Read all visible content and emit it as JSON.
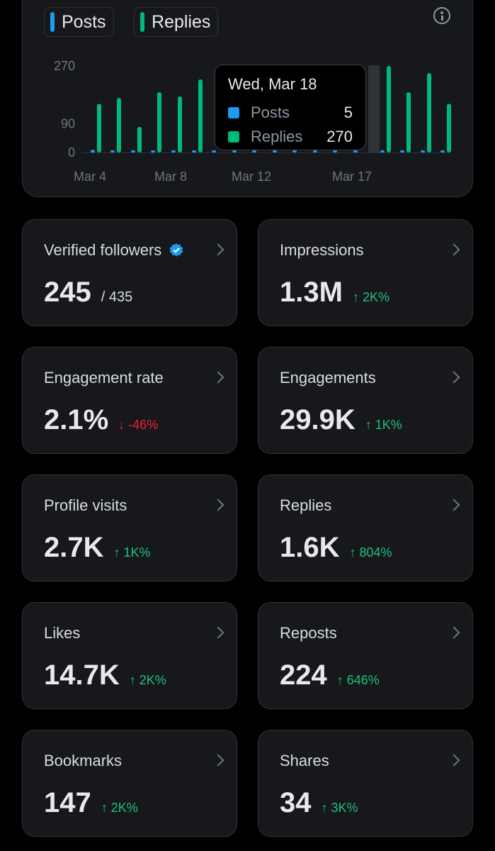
{
  "chart_data": {
    "type": "bar",
    "x": [
      "Mar 4",
      "Mar 5",
      "Mar 6",
      "Mar 7",
      "Mar 8",
      "Mar 9",
      "Mar 10",
      "Mar 11",
      "Mar 12",
      "Mar 13",
      "Mar 14",
      "Mar 15",
      "Mar 16",
      "Mar 17",
      "Mar 18",
      "Mar 19",
      "Mar 20",
      "Mar 21"
    ],
    "xticks": [
      "Mar 4",
      "Mar 8",
      "Mar 12",
      "Mar 17"
    ],
    "yticks": [
      "0",
      "90",
      "270"
    ],
    "ylim": [
      0,
      270
    ],
    "series": [
      {
        "name": "Posts",
        "color": "#1d9bf0",
        "values": [
          8,
          4,
          2,
          4,
          6,
          4,
          4,
          4,
          4,
          4,
          4,
          4,
          4,
          4,
          5,
          4,
          4,
          4
        ]
      },
      {
        "name": "Replies",
        "color": "#00ba7c",
        "values": [
          152,
          170,
          80,
          188,
          175,
          228,
          0,
          0,
          0,
          0,
          0,
          0,
          0,
          0,
          270,
          188,
          248,
          152
        ]
      }
    ],
    "highlight_index": 14,
    "legend": "top-left"
  },
  "tooltip": {
    "date": "Wed, Mar 18",
    "rows": [
      {
        "label": "Posts",
        "value": "5",
        "color": "#1d9bf0"
      },
      {
        "label": "Replies",
        "value": "270",
        "color": "#00ba7c"
      }
    ]
  },
  "legend": {
    "posts_label": "Posts",
    "replies_label": "Replies"
  },
  "stats": [
    {
      "label": "Verified followers",
      "value": "245",
      "sub": "/ 435",
      "delta": "",
      "dir": ""
    },
    {
      "label": "Impressions",
      "value": "1.3M",
      "sub": "",
      "delta": "↑ 2K%",
      "dir": "up"
    },
    {
      "label": "Engagement rate",
      "value": "2.1%",
      "sub": "",
      "delta": "↓ -46%",
      "dir": "down"
    },
    {
      "label": "Engagements",
      "value": "29.9K",
      "sub": "",
      "delta": "↑ 1K%",
      "dir": "up"
    },
    {
      "label": "Profile visits",
      "value": "2.7K",
      "sub": "",
      "delta": "↑ 1K%",
      "dir": "up"
    },
    {
      "label": "Replies",
      "value": "1.6K",
      "sub": "",
      "delta": "↑ 804%",
      "dir": "up"
    },
    {
      "label": "Likes",
      "value": "14.7K",
      "sub": "",
      "delta": "↑ 2K%",
      "dir": "up"
    },
    {
      "label": "Reposts",
      "value": "224",
      "sub": "",
      "delta": "↑ 646%",
      "dir": "up"
    },
    {
      "label": "Bookmarks",
      "value": "147",
      "sub": "",
      "delta": "↑ 2K%",
      "dir": "up"
    },
    {
      "label": "Shares",
      "value": "34",
      "sub": "",
      "delta": "↑ 3K%",
      "dir": "up"
    }
  ]
}
